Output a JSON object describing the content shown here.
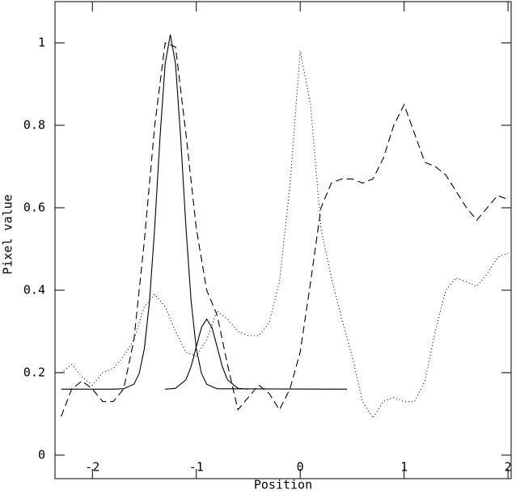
{
  "chart_data": {
    "type": "line",
    "xlabel": "Position",
    "ylabel": "Pixel value",
    "xlim": [
      -2.36,
      2.03
    ],
    "ylim": [
      -0.057,
      1.1
    ],
    "xticks": [
      -2,
      -1,
      0,
      1,
      2
    ],
    "yticks": [
      0,
      0.2,
      0.4,
      0.6,
      0.8,
      1
    ],
    "color": "#000000",
    "x": [
      -2.3,
      -2.2,
      -2.1,
      -2.0,
      -1.9,
      -1.8,
      -1.7,
      -1.6,
      -1.5,
      -1.4,
      -1.3,
      -1.2,
      -1.1,
      -1.0,
      -0.9,
      -0.8,
      -0.7,
      -0.6,
      -0.5,
      -0.4,
      -0.3,
      -0.2,
      -0.1,
      0,
      0.1,
      0.2,
      0.3,
      0.4,
      0.5,
      0.6,
      0.7,
      0.8,
      0.9,
      1.0,
      1.1,
      1.2,
      1.3,
      1.4,
      1.5,
      1.6,
      1.7,
      1.8,
      1.9,
      2.0
    ],
    "series": [
      {
        "dash": "dashed",
        "values": [
          0.094,
          0.16,
          0.18,
          0.16,
          0.13,
          0.13,
          0.16,
          0.28,
          0.52,
          0.8,
          1.0,
          0.99,
          0.78,
          0.55,
          0.4,
          0.34,
          0.22,
          0.11,
          0.14,
          0.17,
          0.15,
          0.11,
          0.16,
          0.25,
          0.42,
          0.6,
          0.66,
          0.67,
          0.67,
          0.66,
          0.67,
          0.72,
          0.8,
          0.85,
          0.78,
          0.71,
          0.7,
          0.68,
          0.64,
          0.6,
          0.57,
          0.6,
          0.63,
          0.62
        ]
      },
      {
        "dash": "dotted",
        "values": [
          0.2,
          0.22,
          0.19,
          0.17,
          0.2,
          0.21,
          0.24,
          0.28,
          0.36,
          0.39,
          0.36,
          0.3,
          0.25,
          0.24,
          0.28,
          0.35,
          0.33,
          0.3,
          0.29,
          0.29,
          0.32,
          0.42,
          0.65,
          0.98,
          0.85,
          0.55,
          0.43,
          0.33,
          0.24,
          0.13,
          0.09,
          0.13,
          0.14,
          0.13,
          0.13,
          0.18,
          0.3,
          0.4,
          0.43,
          0.42,
          0.41,
          0.44,
          0.48,
          0.49
        ]
      },
      {
        "dash": "solid",
        "x": [
          -2.3,
          -1.8,
          -1.7,
          -1.6,
          -1.55,
          -1.5,
          -1.45,
          -1.4,
          -1.35,
          -1.3,
          -1.25,
          -1.2,
          -1.15,
          -1.1,
          -1.05,
          -1.0,
          -0.95,
          -0.9,
          -0.8,
          0.45
        ],
        "values": [
          0.16,
          0.16,
          0.161,
          0.172,
          0.198,
          0.258,
          0.374,
          0.554,
          0.768,
          0.949,
          1.02,
          0.949,
          0.768,
          0.554,
          0.374,
          0.258,
          0.198,
          0.172,
          0.161,
          0.16
        ]
      },
      {
        "dash": "solid",
        "x": [
          -1.3,
          -1.2,
          -1.1,
          -1.05,
          -1.0,
          -0.95,
          -0.9,
          -0.85,
          -0.8,
          -0.75,
          -0.7,
          -0.6,
          -0.5
        ],
        "values": [
          0.16,
          0.162,
          0.183,
          0.215,
          0.263,
          0.31,
          0.33,
          0.31,
          0.263,
          0.215,
          0.183,
          0.162,
          0.16
        ]
      }
    ]
  }
}
